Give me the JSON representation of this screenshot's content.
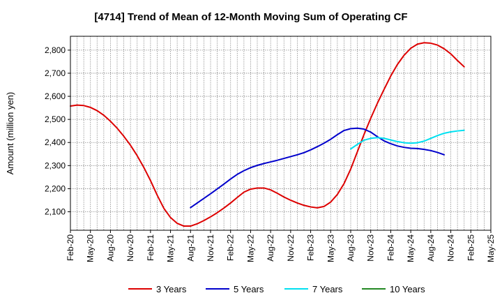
{
  "chart_data": {
    "type": "line",
    "title": "[4714]  Trend of Mean of 12-Month Moving Sum of Operating CF",
    "ylabel": "Amount (million yen)",
    "xlabel": "",
    "ylim": [
      2020,
      2860
    ],
    "y_ticks": [
      2100,
      2200,
      2300,
      2400,
      2500,
      2600,
      2700,
      2800
    ],
    "y_tick_labels": [
      "2,100",
      "2,200",
      "2,300",
      "2,400",
      "2,500",
      "2,600",
      "2,700",
      "2,800"
    ],
    "x_tick_labels": [
      "Feb-20",
      "May-20",
      "Aug-20",
      "Nov-20",
      "Feb-21",
      "May-21",
      "Aug-21",
      "Nov-21",
      "Feb-22",
      "May-22",
      "Aug-22",
      "Nov-22",
      "Feb-23",
      "May-23",
      "Aug-23",
      "Nov-23",
      "Feb-24",
      "May-24",
      "Aug-24",
      "Nov-24",
      "Feb-25",
      "May-25"
    ],
    "x_start": "Feb-20",
    "month_count": 63,
    "grid": true,
    "legend_position": "bottom",
    "series": [
      {
        "name": "3 Years",
        "color": "#dd0000",
        "start_month": 0,
        "values": [
          2558,
          2562,
          2560,
          2552,
          2538,
          2518,
          2492,
          2462,
          2427,
          2388,
          2343,
          2292,
          2235,
          2172,
          2115,
          2075,
          2050,
          2038,
          2038,
          2048,
          2062,
          2078,
          2096,
          2116,
          2138,
          2162,
          2185,
          2198,
          2203,
          2203,
          2195,
          2180,
          2164,
          2150,
          2138,
          2128,
          2121,
          2117,
          2123,
          2142,
          2175,
          2222,
          2285,
          2360,
          2435,
          2505,
          2570,
          2630,
          2688,
          2738,
          2778,
          2808,
          2826,
          2832,
          2830,
          2822,
          2806,
          2784,
          2755,
          2728
        ]
      },
      {
        "name": "5 Years",
        "color": "#0000cc",
        "start_month": 18,
        "values": [
          2118,
          2138,
          2158,
          2178,
          2199,
          2220,
          2242,
          2262,
          2278,
          2291,
          2301,
          2309,
          2316,
          2323,
          2331,
          2339,
          2347,
          2356,
          2368,
          2382,
          2397,
          2414,
          2434,
          2452,
          2460,
          2462,
          2458,
          2445,
          2425,
          2407,
          2395,
          2385,
          2379,
          2375,
          2374,
          2370,
          2365,
          2357,
          2347
        ]
      },
      {
        "name": "7 Years",
        "color": "#00e0f0",
        "start_month": 42,
        "values": [
          2372,
          2392,
          2410,
          2418,
          2421,
          2418,
          2411,
          2404,
          2399,
          2397,
          2399,
          2406,
          2418,
          2430,
          2440,
          2446,
          2450,
          2453
        ]
      },
      {
        "name": "10 Years",
        "color": "#228822",
        "start_month": 0,
        "values": []
      }
    ]
  }
}
